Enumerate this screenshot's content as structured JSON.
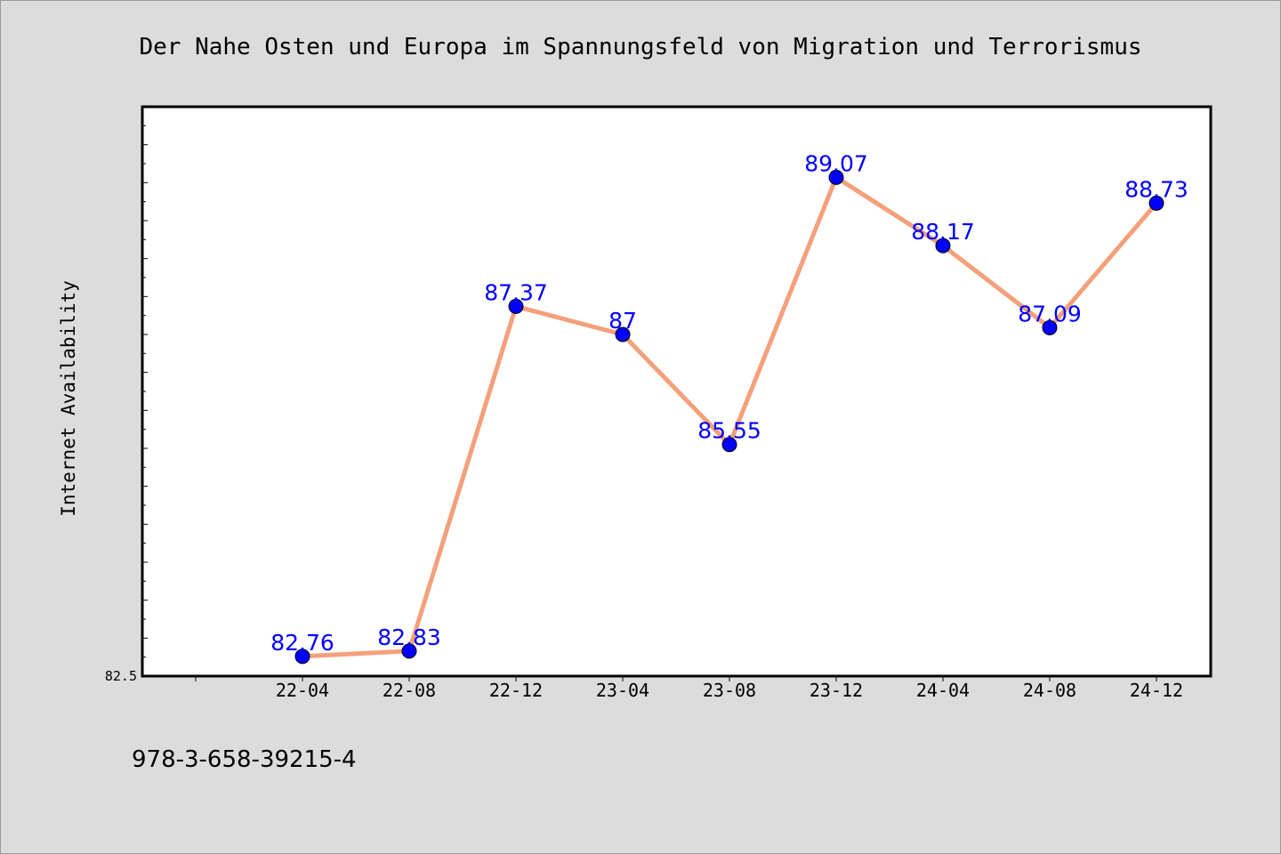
{
  "chart_data": {
    "type": "line",
    "title": "Der Nahe Osten und Europa im Spannungsfeld von Migration und Terrorismus",
    "xlabel": "",
    "ylabel": "Internet Availability",
    "categories": [
      "22-04",
      "22-08",
      "22-12",
      "23-04",
      "23-08",
      "23-12",
      "24-04",
      "24-08",
      "24-12"
    ],
    "series": [
      {
        "values": [
          82.76,
          82.83,
          87.37,
          87,
          85.55,
          89.07,
          88.17,
          87.09,
          88.73
        ],
        "labels": [
          "82.76",
          "82.83",
          "87.37",
          "87",
          "85.55",
          "89.07",
          "88.17",
          "87.09",
          "88.73"
        ]
      }
    ],
    "ylim": [
      82.5,
      90
    ],
    "y_tick_labels": [
      "82.5"
    ],
    "grid": false,
    "line_color": "#f4a07a",
    "marker_color": "#0000ff",
    "label_color": "#0000ff",
    "plot_background": "#ffffff",
    "figure_background": "#dcdcdc"
  },
  "footer": {
    "isbn": "978-3-658-39215-4"
  }
}
